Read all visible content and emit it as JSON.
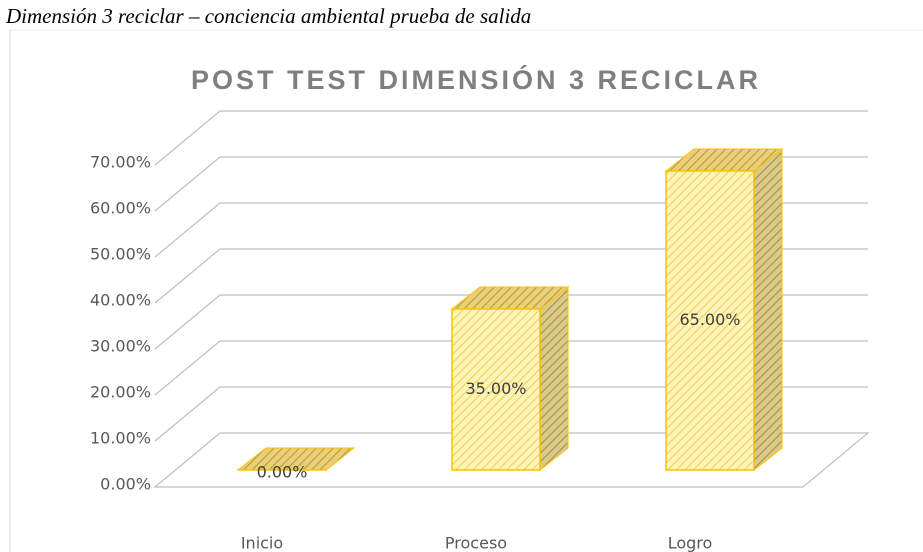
{
  "caption": "Dimensión 3 reciclar – conciencia ambiental prueba de salida",
  "chart_data": {
    "type": "bar3d",
    "title": "POST TEST DIMENSIÓN 3 RECICLAR",
    "categories": [
      "Inicio",
      "Proceso",
      "Logro"
    ],
    "values": [
      0,
      35,
      65
    ],
    "value_labels": [
      "0.00%",
      "35.00%",
      "65.00%"
    ],
    "color": "#ffc000",
    "ylim": [
      0,
      70
    ],
    "yticks": [
      {
        "value": 0,
        "label": "0.00%"
      },
      {
        "value": 10,
        "label": "10.00%"
      },
      {
        "value": 20,
        "label": "20.00%"
      },
      {
        "value": 30,
        "label": "30.00%"
      },
      {
        "value": 40,
        "label": "40.00%"
      },
      {
        "value": 50,
        "label": "50.00%"
      },
      {
        "value": 60,
        "label": "60.00%"
      },
      {
        "value": 70,
        "label": "70.00%"
      }
    ],
    "grid": true
  }
}
